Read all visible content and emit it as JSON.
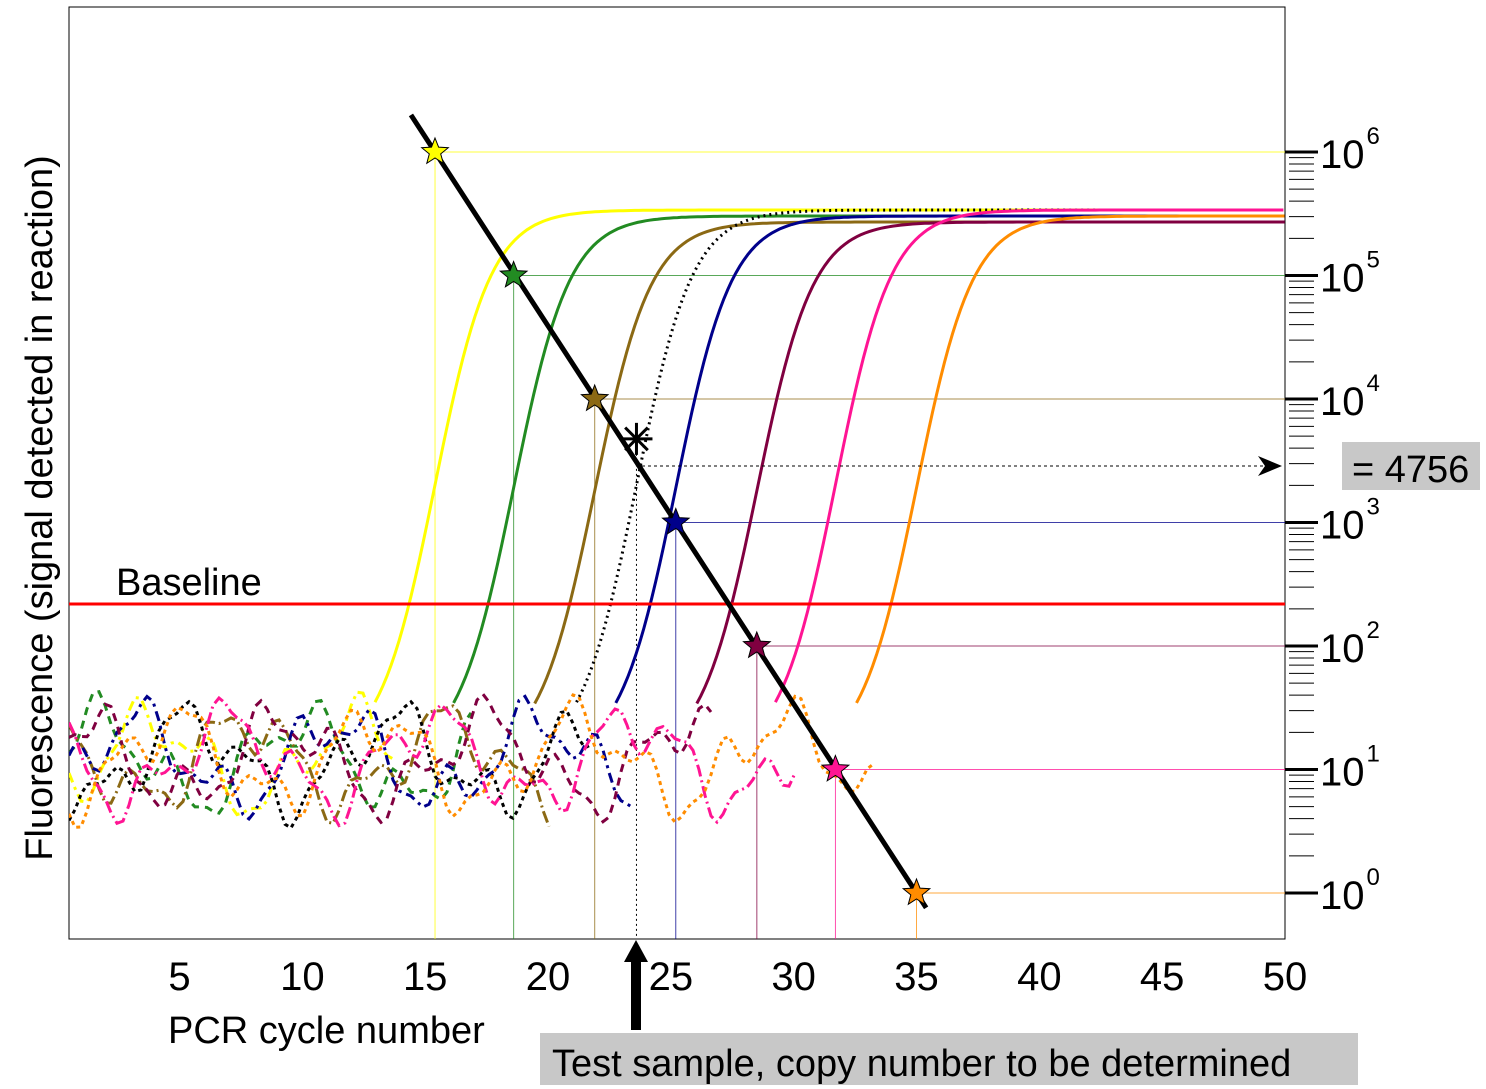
{
  "chart_data": {
    "type": "line",
    "title": "",
    "xlabel": "PCR cycle number",
    "ylabel": "Fluorescence (signal detected in reaction)",
    "xlim": [
      0.5,
      50
    ],
    "x_ticks": [
      5,
      10,
      15,
      20,
      25,
      30,
      35,
      40,
      45,
      50
    ],
    "right_axis": {
      "scale": "log",
      "ticks": [
        {
          "base": "10",
          "exp": "0"
        },
        {
          "base": "10",
          "exp": "1"
        },
        {
          "base": "10",
          "exp": "2"
        },
        {
          "base": "10",
          "exp": "3"
        },
        {
          "base": "10",
          "exp": "4"
        },
        {
          "base": "10",
          "exp": "5"
        },
        {
          "base": "10",
          "exp": "6"
        }
      ],
      "tick_values": [
        1,
        10,
        100,
        1000,
        10000,
        100000,
        1000000
      ]
    },
    "baseline": {
      "label": "Baseline",
      "color": "#ff0000"
    },
    "series": [
      {
        "color": "#ffff00",
        "style": "solid",
        "ct": 15.4,
        "copies": 1000000
      },
      {
        "color": "#228b22",
        "style": "solid",
        "ct": 18.6,
        "copies": 100000
      },
      {
        "color": "#8b6914",
        "style": "solid",
        "ct": 21.9,
        "copies": 10000
      },
      {
        "color": "#000000",
        "style": "dotted",
        "ct": 23.6,
        "copies": 4756
      },
      {
        "color": "#00008b",
        "style": "solid",
        "ct": 25.2,
        "copies": 1000
      },
      {
        "color": "#800040",
        "style": "solid",
        "ct": 28.5,
        "copies": 100
      },
      {
        "color": "#ff1493",
        "style": "solid",
        "ct": 31.7,
        "copies": 10
      },
      {
        "color": "#ff8c00",
        "style": "solid",
        "ct": 35.0,
        "copies": 1
      }
    ],
    "standard_curve": {
      "color": "#000000"
    },
    "annotations": {
      "result": "= 4756",
      "test_sample": "Test sample, copy number to be determined"
    }
  }
}
